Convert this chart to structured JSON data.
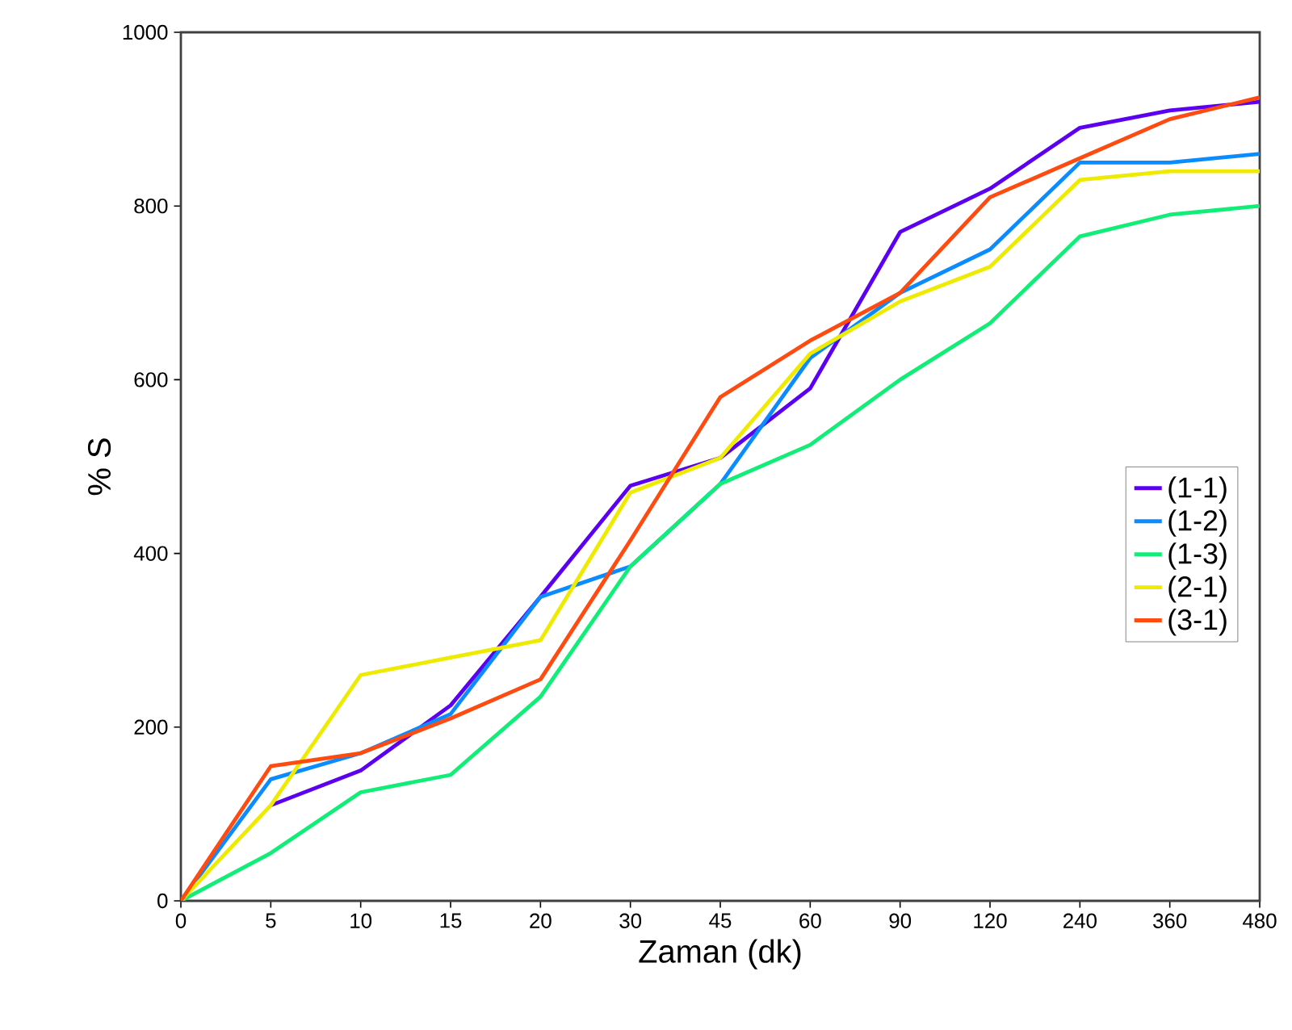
{
  "chart_data": {
    "type": "line",
    "xlabel": "Zaman (dk)",
    "ylabel": "% S",
    "categories": [
      "0",
      "5",
      "10",
      "15",
      "20",
      "30",
      "45",
      "60",
      "90",
      "120",
      "240",
      "360",
      "480"
    ],
    "ylim": [
      0,
      1000
    ],
    "yticks": [
      0,
      200,
      400,
      600,
      800,
      1000
    ],
    "grid": false,
    "legend": "right",
    "marker": "none",
    "line_style": "solid",
    "series": [
      {
        "name": "(1-1)",
        "color": "#5b00f0",
        "values": [
          null,
          110,
          150,
          225,
          350,
          478,
          510,
          590,
          770,
          820,
          890,
          910,
          920
        ]
      },
      {
        "name": "(1-2)",
        "color": "#0a8cff",
        "values": [
          0,
          140,
          170,
          215,
          350,
          385,
          480,
          625,
          700,
          750,
          850,
          850,
          860
        ]
      },
      {
        "name": "(1-3)",
        "color": "#10ee78",
        "values": [
          0,
          55,
          125,
          145,
          235,
          385,
          480,
          525,
          600,
          665,
          765,
          790,
          800
        ]
      },
      {
        "name": "(2-1)",
        "color": "#eeea00",
        "values": [
          0,
          110,
          260,
          280,
          300,
          470,
          510,
          630,
          690,
          730,
          830,
          840,
          840
        ]
      },
      {
        "name": "(3-1)",
        "color": "#ff4a10",
        "values": [
          0,
          155,
          170,
          210,
          255,
          415,
          580,
          645,
          700,
          810,
          855,
          900,
          925
        ]
      }
    ]
  }
}
